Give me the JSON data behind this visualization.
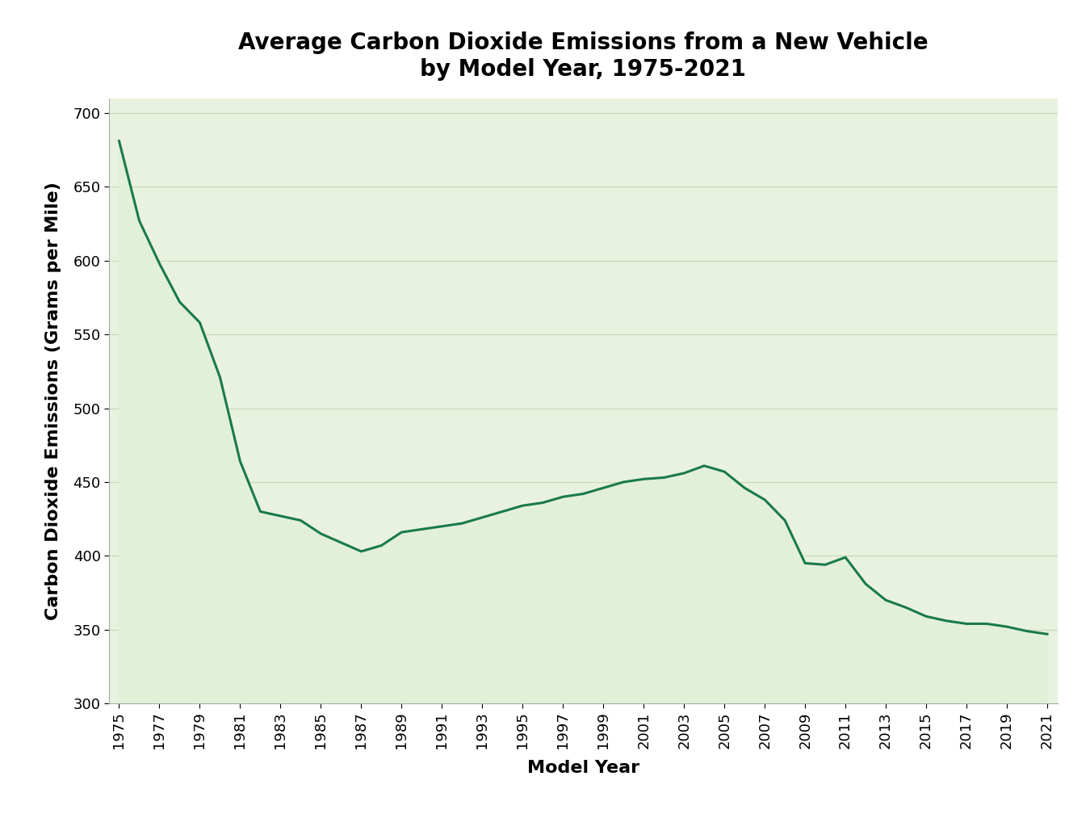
{
  "title": "Average Carbon Dioxide Emissions from a New Vehicle\nby Model Year, 1975-2021",
  "xlabel": "Model Year",
  "ylabel": "Carbon Dioxide Emissions (Grams per Mile)",
  "years": [
    1975,
    1976,
    1977,
    1978,
    1979,
    1980,
    1981,
    1982,
    1983,
    1984,
    1985,
    1986,
    1987,
    1988,
    1989,
    1990,
    1991,
    1992,
    1993,
    1994,
    1995,
    1996,
    1997,
    1998,
    1999,
    2000,
    2001,
    2002,
    2003,
    2004,
    2005,
    2006,
    2007,
    2008,
    2009,
    2010,
    2011,
    2012,
    2013,
    2014,
    2015,
    2016,
    2017,
    2018,
    2019,
    2020,
    2021
  ],
  "values": [
    681,
    627,
    598,
    572,
    558,
    521,
    464,
    430,
    427,
    424,
    415,
    409,
    403,
    407,
    416,
    418,
    420,
    422,
    426,
    430,
    434,
    436,
    440,
    442,
    446,
    450,
    452,
    453,
    456,
    461,
    457,
    446,
    438,
    424,
    395,
    394,
    399,
    381,
    370,
    365,
    359,
    356,
    354,
    354,
    352,
    349,
    347
  ],
  "line_color": "#1a7a4a",
  "fill_color": "#e2f0d9",
  "plot_bg_color": "#e8f2de",
  "ylim": [
    300,
    710
  ],
  "yticks": [
    300,
    350,
    400,
    450,
    500,
    550,
    600,
    650,
    700
  ],
  "xtick_step": 2,
  "title_fontsize": 20,
  "axis_label_fontsize": 16,
  "tick_fontsize": 13,
  "line_width": 2.2,
  "grid_color": "#c8d8b8",
  "spine_color": "#aaaaaa"
}
